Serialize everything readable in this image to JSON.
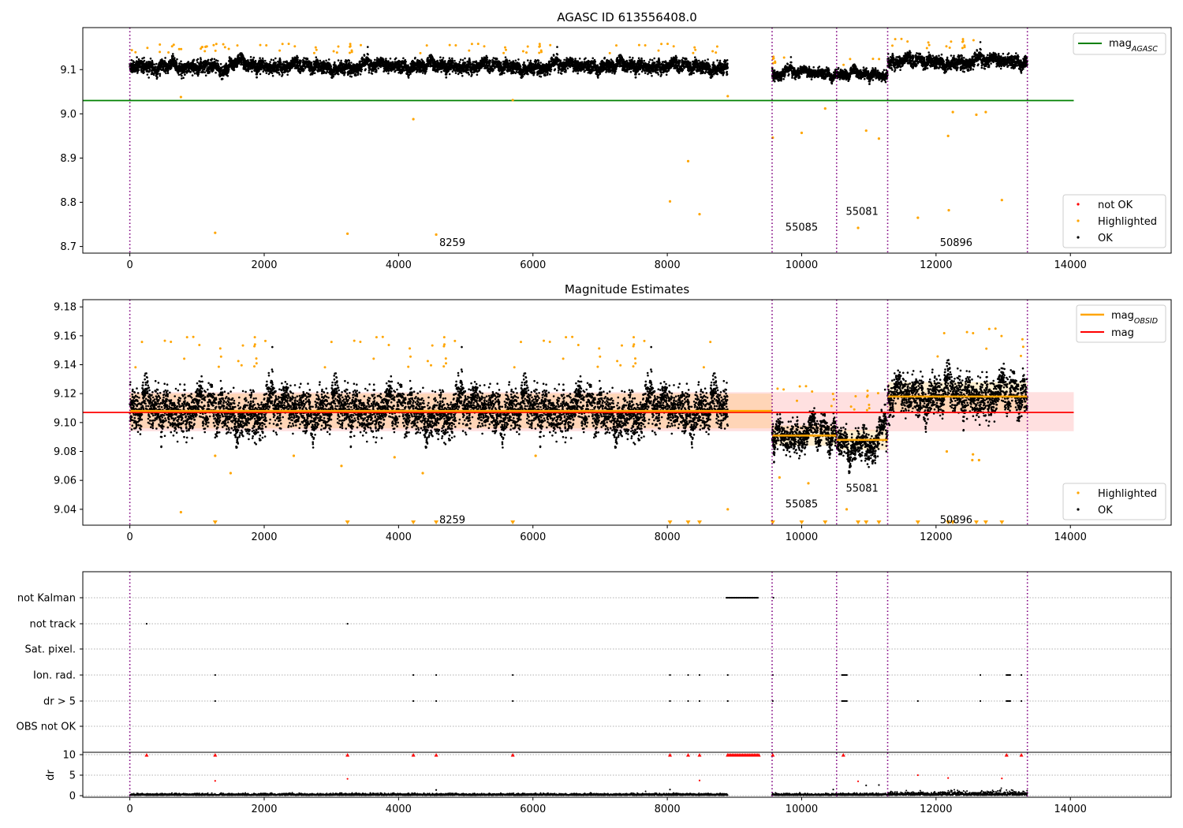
{
  "chart_data": [
    {
      "type": "scatter",
      "title": "AGASC ID 613556408.0",
      "xlim": [
        -700,
        15500
      ],
      "ylim": [
        8.685,
        9.195
      ],
      "x_ticks": [
        0,
        2000,
        4000,
        6000,
        8000,
        10000,
        12000,
        14000
      ],
      "y_ticks": [
        8.7,
        8.8,
        8.9,
        9.0,
        9.1
      ],
      "y_tick_labels": [
        "8.7",
        "8.8",
        "8.9",
        "9.0",
        "9.1"
      ],
      "legend_top": {
        "position": "top-right",
        "entries": [
          {
            "label": "mag_AGASC",
            "color": "#008000",
            "kind": "line"
          }
        ]
      },
      "legend_bottom": {
        "position": "bottom-right",
        "entries": [
          {
            "label": "not OK",
            "color": "#ff0000",
            "kind": "marker"
          },
          {
            "label": "Highlighted",
            "color": "#ffa500",
            "kind": "marker"
          },
          {
            "label": "OK",
            "color": "#000000",
            "kind": "marker"
          }
        ]
      },
      "mag_agasc": 9.03,
      "mag_agasc_x_range": [
        -700,
        14050
      ],
      "obsid_boundaries": [
        0,
        9560,
        10520,
        11280,
        13360
      ],
      "obsid_labels": [
        {
          "text": "8259",
          "x": 4800,
          "y": 8.71
        },
        {
          "text": "55085",
          "x": 10000,
          "y": 8.745
        },
        {
          "text": "55081",
          "x": 10900,
          "y": 8.78
        },
        {
          "text": "50896",
          "x": 12300,
          "y": 8.71
        }
      ],
      "segments": [
        {
          "x_start": 0,
          "x_end": 8900,
          "mean": 9.107,
          "spread": 0.012
        },
        {
          "x_start": 9560,
          "x_end": 10520,
          "mean": 9.091,
          "spread": 0.009
        },
        {
          "x_start": 10520,
          "x_end": 11280,
          "mean": 9.088,
          "spread": 0.009
        },
        {
          "x_start": 11280,
          "x_end": 13360,
          "mean": 9.118,
          "spread": 0.012
        }
      ],
      "highlighted_outliers": [
        {
          "x": 760,
          "y": 9.038
        },
        {
          "x": 1270,
          "y": 8.731
        },
        {
          "x": 3240,
          "y": 8.729
        },
        {
          "x": 4220,
          "y": 8.988
        },
        {
          "x": 4560,
          "y": 8.727
        },
        {
          "x": 5700,
          "y": 9.031
        },
        {
          "x": 8040,
          "y": 8.802
        },
        {
          "x": 8310,
          "y": 8.893
        },
        {
          "x": 8480,
          "y": 8.773
        },
        {
          "x": 8900,
          "y": 9.04
        },
        {
          "x": 9570,
          "y": 8.946
        },
        {
          "x": 10000,
          "y": 8.957
        },
        {
          "x": 10350,
          "y": 9.012
        },
        {
          "x": 10840,
          "y": 8.742
        },
        {
          "x": 10960,
          "y": 8.962
        },
        {
          "x": 11150,
          "y": 8.944
        },
        {
          "x": 11730,
          "y": 8.765
        },
        {
          "x": 12180,
          "y": 8.95
        },
        {
          "x": 12190,
          "y": 8.782
        },
        {
          "x": 12250,
          "y": 9.004
        },
        {
          "x": 12600,
          "y": 8.998
        },
        {
          "x": 12740,
          "y": 9.004
        },
        {
          "x": 12980,
          "y": 8.805
        }
      ]
    },
    {
      "type": "scatter",
      "title": "Magnitude Estimates",
      "xlim": [
        -700,
        15500
      ],
      "ylim": [
        9.029,
        9.185
      ],
      "x_ticks": [
        0,
        2000,
        4000,
        6000,
        8000,
        10000,
        12000,
        14000
      ],
      "y_ticks": [
        9.04,
        9.06,
        9.08,
        9.1,
        9.12,
        9.14,
        9.16,
        9.18
      ],
      "y_tick_labels": [
        "9.04",
        "9.06",
        "9.08",
        "9.10",
        "9.12",
        "9.14",
        "9.16",
        "9.18"
      ],
      "legend_top": {
        "position": "top-right",
        "entries": [
          {
            "label": "mag_OBSID",
            "color": "#ffa500",
            "kind": "line"
          },
          {
            "label": "mag",
            "color": "#ff0000",
            "kind": "line"
          }
        ]
      },
      "legend_bottom": {
        "position": "bottom-right",
        "entries": [
          {
            "label": "Highlighted",
            "color": "#ffa500",
            "kind": "marker"
          },
          {
            "label": "OK",
            "color": "#000000",
            "kind": "marker"
          }
        ]
      },
      "mag": 9.107,
      "mag_band": [
        9.094,
        9.121
      ],
      "mag_x_range": [
        -700,
        14050
      ],
      "mag_obsid": [
        {
          "x_start": 0,
          "x_end": 9560,
          "value": 9.108,
          "band": [
            9.096,
            9.12
          ]
        },
        {
          "x_start": 9560,
          "x_end": 10520,
          "value": 9.091,
          "band": [
            9.084,
            9.098
          ]
        },
        {
          "x_start": 10520,
          "x_end": 11280,
          "value": 9.088,
          "band": [
            9.081,
            9.095
          ]
        },
        {
          "x_start": 11280,
          "x_end": 13360,
          "value": 9.118,
          "band": [
            9.108,
            9.128
          ]
        }
      ],
      "obsid_boundaries": [
        0,
        9560,
        10520,
        11280,
        13360
      ],
      "obsid_labels": [
        {
          "text": "8259",
          "x": 4800,
          "y": 9.033
        },
        {
          "text": "55085",
          "x": 10000,
          "y": 9.044
        },
        {
          "text": "55081",
          "x": 10900,
          "y": 9.055
        },
        {
          "text": "50896",
          "x": 12300,
          "y": 9.033
        }
      ],
      "segments": [
        {
          "x_start": 0,
          "x_end": 8900,
          "mean": 9.108,
          "spread": 0.012
        },
        {
          "x_start": 9560,
          "x_end": 10520,
          "mean": 9.091,
          "spread": 0.008
        },
        {
          "x_start": 10520,
          "x_end": 11280,
          "mean": 9.088,
          "spread": 0.008
        },
        {
          "x_start": 11280,
          "x_end": 13360,
          "mean": 9.118,
          "spread": 0.011
        }
      ],
      "highlighted_points": [
        {
          "x": 760,
          "y": 9.038
        },
        {
          "x": 1270,
          "y": 9.077
        },
        {
          "x": 1500,
          "y": 9.065
        },
        {
          "x": 2440,
          "y": 9.077
        },
        {
          "x": 3150,
          "y": 9.07
        },
        {
          "x": 3940,
          "y": 9.076
        },
        {
          "x": 4360,
          "y": 9.065
        },
        {
          "x": 6040,
          "y": 9.077
        },
        {
          "x": 8900,
          "y": 9.04
        },
        {
          "x": 9670,
          "y": 9.062
        },
        {
          "x": 10100,
          "y": 9.058
        },
        {
          "x": 10670,
          "y": 9.04
        },
        {
          "x": 12160,
          "y": 9.08
        },
        {
          "x": 12540,
          "y": 9.074
        },
        {
          "x": 12550,
          "y": 9.078
        },
        {
          "x": 12640,
          "y": 9.074
        }
      ],
      "below_range_markers_x": [
        1270,
        3240,
        4220,
        4560,
        5700,
        8040,
        8310,
        8480,
        9570,
        10000,
        10350,
        10840,
        10960,
        11150,
        11730,
        12180,
        12250,
        12600,
        12740,
        12980
      ]
    },
    {
      "type": "scatter",
      "title": "",
      "xlim": [
        -700,
        15500
      ],
      "x_ticks": [
        0,
        2000,
        4000,
        6000,
        8000,
        10000,
        12000,
        14000
      ],
      "flag_rows": [
        "not Kalman",
        "not track",
        "Sat. pixel.",
        "Ion. rad.",
        "dr > 5",
        "OBS not OK"
      ],
      "flags": {
        "not Kalman": {
          "ranges": [
            [
              8880,
              9350
            ]
          ],
          "points": [
            9580
          ]
        },
        "not track": {
          "ranges": [],
          "points": [
            250,
            3240
          ]
        },
        "Sat. pixel.": {
          "ranges": [],
          "points": []
        },
        "Ion. rad.": {
          "ranges": [
            [
              10600,
              10680
            ],
            [
              13050,
              13120
            ]
          ],
          "points": [
            1270,
            4220,
            4560,
            5700,
            8040,
            8310,
            8480,
            8900,
            9570,
            12660,
            13270
          ]
        },
        "dr > 5": {
          "ranges": [
            [
              10600,
              10680
            ],
            [
              13050,
              13120
            ]
          ],
          "points": [
            1270,
            4220,
            4560,
            5700,
            8040,
            8310,
            8480,
            8900,
            9570,
            11730,
            12660,
            13270
          ]
        },
        "OBS not OK": {
          "ranges": [],
          "points": []
        }
      },
      "dr_ylabel": "dr",
      "dr_yticks": [
        0,
        5,
        10
      ],
      "dr_ylim": [
        -0.5,
        10.6
      ],
      "dr_base_segments": [
        [
          0,
          8900
        ],
        [
          9560,
          13360
        ]
      ],
      "dr_capped_x": [
        250,
        1270,
        3240,
        4220,
        4560,
        5700,
        8040,
        8310,
        8480,
        8900,
        9570,
        10620,
        13050,
        13270
      ],
      "dr_capped_range": [
        8900,
        9380
      ],
      "dr_mid_points": [
        {
          "x": 1270,
          "y": 3.6
        },
        {
          "x": 3240,
          "y": 4.1
        },
        {
          "x": 4560,
          "y": 1.4
        },
        {
          "x": 8040,
          "y": 1.5
        },
        {
          "x": 8480,
          "y": 3.7
        },
        {
          "x": 10470,
          "y": 1.5
        },
        {
          "x": 10840,
          "y": 3.5
        },
        {
          "x": 10960,
          "y": 2.5
        },
        {
          "x": 11150,
          "y": 2.6
        },
        {
          "x": 11730,
          "y": 5.0
        },
        {
          "x": 12180,
          "y": 4.3
        },
        {
          "x": 12980,
          "y": 4.2
        }
      ],
      "obsid_boundaries": [
        0,
        9560,
        10520,
        11280,
        13360
      ]
    }
  ]
}
